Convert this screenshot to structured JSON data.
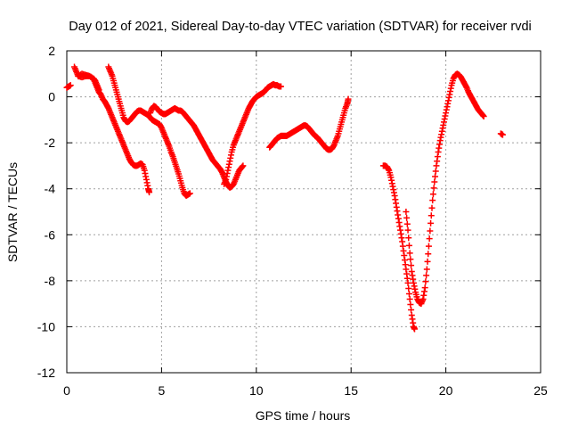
{
  "chart_data": {
    "type": "scatter",
    "title": "Day 012 of 2021, Sidereal Day-to-day VTEC variation (SDTVAR) for receiver rvdi",
    "xlabel": "GPS time / hours",
    "ylabel": "SDTVAR / TECUs",
    "xlim": [
      0,
      25
    ],
    "ylim": [
      -12,
      2
    ],
    "xticks": [
      0,
      5,
      10,
      15,
      20,
      25
    ],
    "yticks": [
      -12,
      -10,
      -8,
      -6,
      -4,
      -2,
      0,
      2
    ],
    "grid": true,
    "marker": "plus",
    "series": [
      {
        "color": "#ff0000",
        "segments": [
          [
            [
              0.0,
              0.4
            ],
            [
              0.1,
              0.45
            ],
            [
              0.2,
              0.5
            ]
          ],
          [
            [
              0.4,
              1.3
            ],
            [
              0.5,
              1.1
            ],
            [
              0.6,
              0.9
            ],
            [
              0.8,
              0.85
            ],
            [
              1.0,
              0.9
            ],
            [
              1.2,
              0.9
            ],
            [
              1.4,
              0.8
            ],
            [
              1.5,
              0.6
            ],
            [
              1.6,
              0.4
            ],
            [
              1.7,
              0.2
            ],
            [
              1.8,
              0.1
            ],
            [
              1.9,
              -0.1
            ],
            [
              2.0,
              -0.2
            ],
            [
              2.1,
              -0.35
            ],
            [
              2.2,
              -0.5
            ],
            [
              2.3,
              -0.7
            ],
            [
              2.4,
              -0.9
            ],
            [
              2.5,
              -1.1
            ],
            [
              2.6,
              -1.3
            ],
            [
              2.7,
              -1.5
            ],
            [
              2.8,
              -1.7
            ],
            [
              2.9,
              -1.9
            ],
            [
              3.0,
              -2.1
            ],
            [
              3.1,
              -2.3
            ],
            [
              3.2,
              -2.5
            ],
            [
              3.3,
              -2.7
            ],
            [
              3.4,
              -2.85
            ],
            [
              3.5,
              -2.95
            ],
            [
              3.6,
              -3.0
            ],
            [
              3.7,
              -3.0
            ],
            [
              3.8,
              -2.95
            ],
            [
              3.9,
              -2.9
            ],
            [
              4.0,
              -2.95
            ],
            [
              4.1,
              -3.2
            ],
            [
              4.2,
              -3.6
            ],
            [
              4.3,
              -4.0
            ],
            [
              4.35,
              -4.15
            ]
          ],
          [
            [
              0.6,
              0.9
            ],
            [
              0.8,
              1.0
            ],
            [
              1.0,
              0.95
            ],
            [
              1.2,
              0.9
            ],
            [
              1.4,
              0.8
            ],
            [
              1.5,
              0.7
            ],
            [
              1.6,
              0.5
            ],
            [
              1.7,
              0.3
            ]
          ],
          [
            [
              2.2,
              1.3
            ],
            [
              2.3,
              1.1
            ],
            [
              2.4,
              0.9
            ],
            [
              2.5,
              0.6
            ],
            [
              2.6,
              0.3
            ],
            [
              2.7,
              0.0
            ],
            [
              2.8,
              -0.3
            ],
            [
              2.9,
              -0.6
            ],
            [
              3.0,
              -0.9
            ],
            [
              3.1,
              -1.05
            ],
            [
              3.2,
              -1.1
            ],
            [
              3.3,
              -1.05
            ],
            [
              3.4,
              -0.95
            ],
            [
              3.5,
              -0.85
            ],
            [
              3.6,
              -0.75
            ],
            [
              3.7,
              -0.65
            ],
            [
              3.8,
              -0.6
            ],
            [
              3.9,
              -0.6
            ],
            [
              4.0,
              -0.65
            ],
            [
              4.1,
              -0.7
            ],
            [
              4.2,
              -0.75
            ],
            [
              4.3,
              -0.8
            ],
            [
              4.4,
              -0.9
            ],
            [
              4.5,
              -1.0
            ],
            [
              4.6,
              -1.05
            ],
            [
              4.7,
              -1.1
            ],
            [
              4.8,
              -1.15
            ],
            [
              4.9,
              -1.2
            ],
            [
              5.0,
              -1.35
            ],
            [
              5.1,
              -1.55
            ],
            [
              5.2,
              -1.75
            ],
            [
              5.3,
              -1.95
            ],
            [
              5.4,
              -2.15
            ],
            [
              5.5,
              -2.4
            ],
            [
              5.6,
              -2.6
            ],
            [
              5.7,
              -2.85
            ],
            [
              5.8,
              -3.1
            ],
            [
              5.9,
              -3.35
            ],
            [
              6.0,
              -3.65
            ],
            [
              6.1,
              -3.95
            ],
            [
              6.2,
              -4.2
            ],
            [
              6.3,
              -4.3
            ],
            [
              6.4,
              -4.25
            ],
            [
              6.5,
              -4.2
            ]
          ],
          [
            [
              4.4,
              -0.7
            ],
            [
              4.5,
              -0.5
            ],
            [
              4.6,
              -0.4
            ],
            [
              4.7,
              -0.45
            ],
            [
              4.8,
              -0.55
            ],
            [
              4.9,
              -0.65
            ],
            [
              5.0,
              -0.7
            ],
            [
              5.1,
              -0.75
            ],
            [
              5.2,
              -0.75
            ],
            [
              5.3,
              -0.7
            ],
            [
              5.4,
              -0.65
            ],
            [
              5.5,
              -0.6
            ],
            [
              5.6,
              -0.55
            ],
            [
              5.7,
              -0.5
            ],
            [
              5.8,
              -0.55
            ],
            [
              5.9,
              -0.6
            ],
            [
              6.0,
              -0.6
            ],
            [
              6.1,
              -0.65
            ],
            [
              6.2,
              -0.75
            ],
            [
              6.3,
              -0.85
            ],
            [
              6.4,
              -0.95
            ],
            [
              6.5,
              -1.05
            ],
            [
              6.6,
              -1.15
            ],
            [
              6.7,
              -1.25
            ],
            [
              6.8,
              -1.4
            ],
            [
              6.9,
              -1.55
            ],
            [
              7.0,
              -1.7
            ],
            [
              7.1,
              -1.85
            ],
            [
              7.2,
              -2.0
            ],
            [
              7.3,
              -2.15
            ],
            [
              7.4,
              -2.3
            ],
            [
              7.5,
              -2.45
            ],
            [
              7.6,
              -2.6
            ],
            [
              7.7,
              -2.75
            ],
            [
              7.8,
              -2.85
            ],
            [
              7.9,
              -2.95
            ],
            [
              8.0,
              -3.05
            ],
            [
              8.1,
              -3.15
            ],
            [
              8.2,
              -3.3
            ],
            [
              8.3,
              -3.5
            ],
            [
              8.4,
              -3.7
            ],
            [
              8.5,
              -3.85
            ],
            [
              8.6,
              -3.95
            ],
            [
              8.7,
              -3.9
            ],
            [
              8.8,
              -3.8
            ],
            [
              8.9,
              -3.6
            ],
            [
              9.0,
              -3.4
            ],
            [
              9.1,
              -3.2
            ],
            [
              9.2,
              -3.1
            ],
            [
              9.3,
              -3.0
            ]
          ],
          [
            [
              8.3,
              -3.8
            ],
            [
              8.4,
              -3.6
            ],
            [
              8.5,
              -3.2
            ],
            [
              8.6,
              -2.8
            ],
            [
              8.7,
              -2.4
            ],
            [
              8.8,
              -2.1
            ],
            [
              8.9,
              -1.9
            ],
            [
              9.0,
              -1.7
            ],
            [
              9.1,
              -1.5
            ],
            [
              9.2,
              -1.3
            ],
            [
              9.3,
              -1.1
            ],
            [
              9.4,
              -0.9
            ],
            [
              9.5,
              -0.7
            ],
            [
              9.6,
              -0.5
            ],
            [
              9.7,
              -0.35
            ],
            [
              9.8,
              -0.2
            ],
            [
              9.9,
              -0.1
            ],
            [
              10.0,
              0.0
            ],
            [
              10.1,
              0.05
            ],
            [
              10.2,
              0.1
            ],
            [
              10.3,
              0.15
            ],
            [
              10.4,
              0.2
            ],
            [
              10.5,
              0.3
            ],
            [
              10.6,
              0.4
            ],
            [
              10.7,
              0.45
            ],
            [
              10.8,
              0.5
            ],
            [
              10.9,
              0.55
            ],
            [
              11.0,
              0.5
            ],
            [
              11.1,
              0.5
            ],
            [
              11.2,
              0.45
            ],
            [
              11.3,
              0.45
            ]
          ],
          [
            [
              10.7,
              -2.2
            ],
            [
              10.8,
              -2.1
            ],
            [
              10.9,
              -2.0
            ],
            [
              11.0,
              -1.9
            ],
            [
              11.1,
              -1.8
            ],
            [
              11.2,
              -1.75
            ],
            [
              11.3,
              -1.7
            ],
            [
              11.4,
              -1.7
            ],
            [
              11.5,
              -1.7
            ],
            [
              11.6,
              -1.7
            ],
            [
              11.7,
              -1.65
            ],
            [
              11.8,
              -1.6
            ],
            [
              11.9,
              -1.55
            ],
            [
              12.0,
              -1.5
            ],
            [
              12.1,
              -1.45
            ],
            [
              12.2,
              -1.4
            ],
            [
              12.3,
              -1.35
            ],
            [
              12.4,
              -1.3
            ],
            [
              12.5,
              -1.25
            ],
            [
              12.6,
              -1.25
            ],
            [
              12.7,
              -1.3
            ],
            [
              12.8,
              -1.4
            ],
            [
              12.9,
              -1.5
            ],
            [
              13.0,
              -1.6
            ],
            [
              13.1,
              -1.7
            ],
            [
              13.2,
              -1.75
            ],
            [
              13.3,
              -1.85
            ],
            [
              13.4,
              -1.95
            ],
            [
              13.5,
              -2.05
            ],
            [
              13.6,
              -2.15
            ],
            [
              13.7,
              -2.25
            ],
            [
              13.8,
              -2.3
            ],
            [
              13.9,
              -2.3
            ],
            [
              14.0,
              -2.25
            ],
            [
              14.1,
              -2.1
            ],
            [
              14.2,
              -1.9
            ],
            [
              14.3,
              -1.7
            ],
            [
              14.4,
              -1.4
            ],
            [
              14.5,
              -1.1
            ],
            [
              14.6,
              -0.8
            ],
            [
              14.7,
              -0.5
            ],
            [
              14.8,
              -0.3
            ],
            [
              14.85,
              -0.1
            ]
          ],
          [
            [
              16.7,
              -3.0
            ],
            [
              16.8,
              -3.0
            ],
            [
              16.9,
              -3.05
            ],
            [
              17.0,
              -3.2
            ],
            [
              17.1,
              -3.5
            ],
            [
              17.2,
              -3.9
            ],
            [
              17.3,
              -4.3
            ],
            [
              17.4,
              -4.8
            ],
            [
              17.5,
              -5.3
            ],
            [
              17.6,
              -5.8
            ],
            [
              17.7,
              -6.3
            ],
            [
              17.8,
              -6.9
            ],
            [
              17.9,
              -7.5
            ],
            [
              18.0,
              -8.1
            ],
            [
              18.1,
              -8.8
            ],
            [
              18.2,
              -9.5
            ],
            [
              18.3,
              -10.0
            ],
            [
              18.35,
              -10.1
            ]
          ],
          [
            [
              17.9,
              -5.0
            ],
            [
              18.0,
              -5.8
            ],
            [
              18.1,
              -6.8
            ],
            [
              18.2,
              -7.6
            ],
            [
              18.3,
              -8.1
            ],
            [
              18.4,
              -8.5
            ],
            [
              18.5,
              -8.8
            ],
            [
              18.6,
              -8.95
            ],
            [
              18.7,
              -9.0
            ],
            [
              18.8,
              -8.8
            ],
            [
              18.9,
              -8.3
            ],
            [
              19.0,
              -7.5
            ],
            [
              19.1,
              -6.5
            ],
            [
              19.2,
              -5.5
            ],
            [
              19.3,
              -4.5
            ],
            [
              19.4,
              -3.7
            ],
            [
              19.5,
              -3.0
            ],
            [
              19.6,
              -2.4
            ],
            [
              19.7,
              -1.9
            ],
            [
              19.8,
              -1.5
            ],
            [
              19.9,
              -1.1
            ],
            [
              20.0,
              -0.7
            ],
            [
              20.1,
              -0.3
            ],
            [
              20.2,
              0.1
            ],
            [
              20.3,
              0.5
            ],
            [
              20.4,
              0.8
            ],
            [
              20.5,
              0.95
            ],
            [
              20.6,
              1.0
            ],
            [
              20.7,
              0.95
            ],
            [
              20.8,
              0.85
            ],
            [
              20.9,
              0.7
            ],
            [
              21.0,
              0.55
            ],
            [
              21.1,
              0.4
            ],
            [
              21.2,
              0.2
            ],
            [
              21.3,
              0.05
            ],
            [
              21.4,
              -0.1
            ],
            [
              21.5,
              -0.25
            ],
            [
              21.6,
              -0.4
            ],
            [
              21.7,
              -0.55
            ],
            [
              21.8,
              -0.65
            ],
            [
              21.9,
              -0.75
            ],
            [
              22.0,
              -0.85
            ]
          ],
          [
            [
              22.9,
              -1.6
            ],
            [
              23.0,
              -1.65
            ]
          ]
        ]
      }
    ]
  }
}
